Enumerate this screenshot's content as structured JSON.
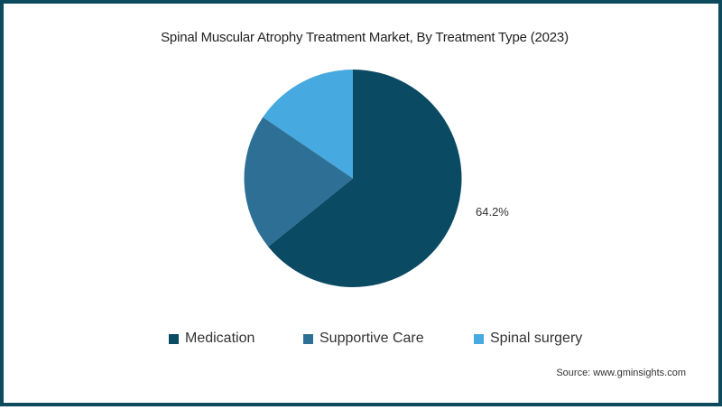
{
  "chart_data": {
    "type": "pie",
    "title": "Spinal Muscular Atrophy Treatment Market, By Treatment Type (2023)",
    "categories": [
      "Medication",
      "Supportive Care",
      "Spinal surgery"
    ],
    "values": [
      64.2,
      20.3,
      15.5
    ],
    "colors": [
      "#0a4a63",
      "#2e6f95",
      "#46a9df"
    ],
    "data_labels": [
      "64.2%",
      "",
      ""
    ],
    "legend_position": "bottom",
    "start_angle_deg": 0,
    "direction": "clockwise"
  },
  "title": "Spinal Muscular Atrophy Treatment Market, By Treatment Type (2023)",
  "label_medication": "64.2%",
  "legend": [
    {
      "label": "Medication",
      "color": "#0a4a63"
    },
    {
      "label": "Supportive Care",
      "color": "#2e6f95"
    },
    {
      "label": "Spinal surgery",
      "color": "#46a9df"
    }
  ],
  "source": "Source: www.gminsights.com"
}
